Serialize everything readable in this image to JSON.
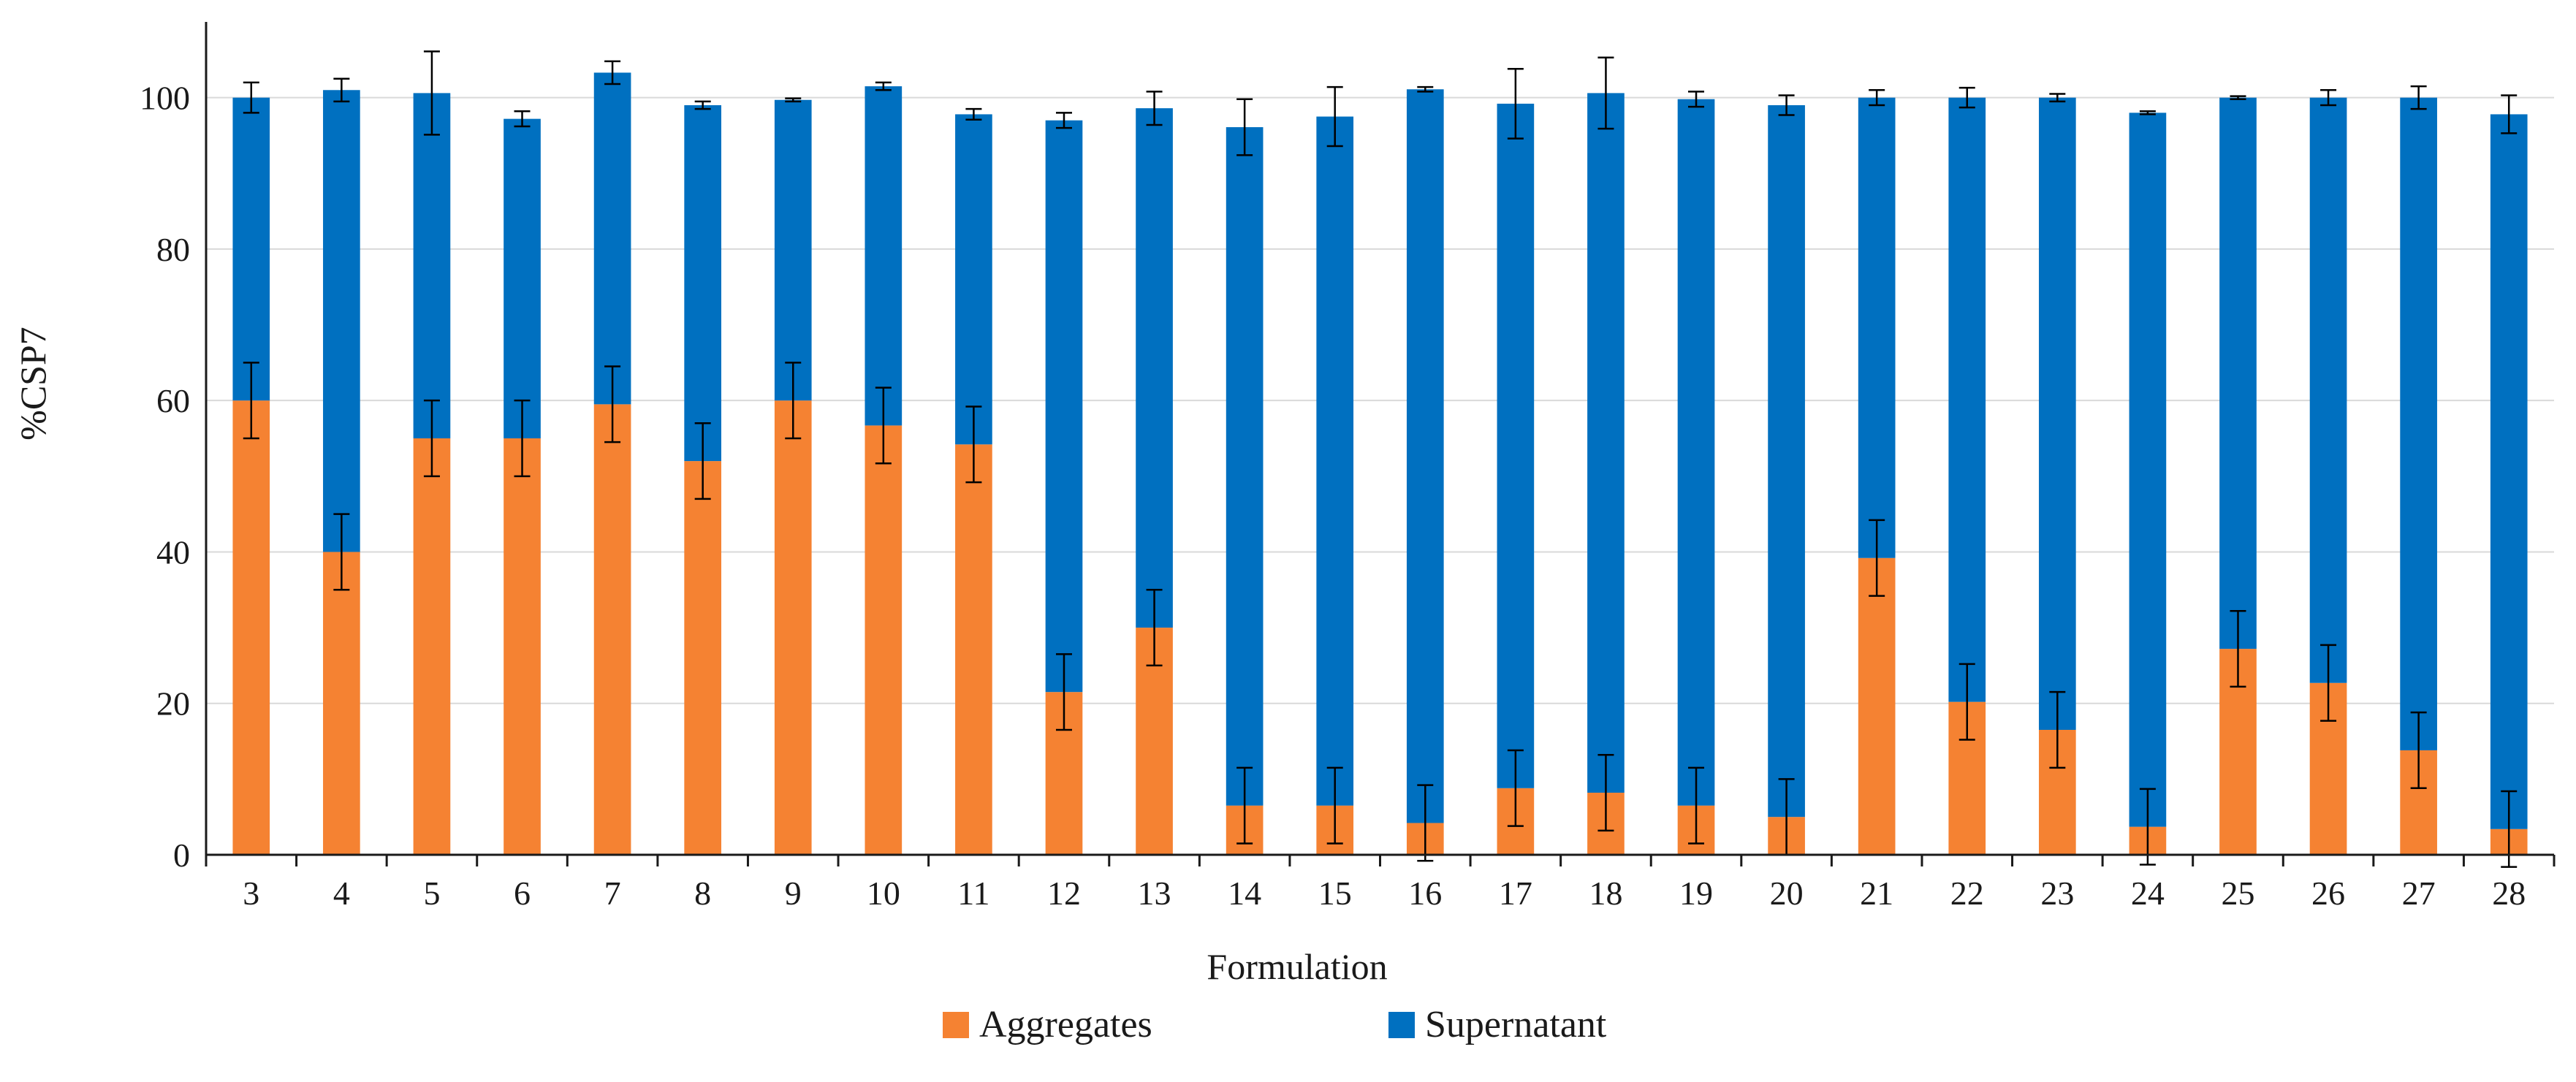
{
  "chart_data": {
    "type": "bar",
    "stacked": true,
    "title": "",
    "xlabel": "Formulation",
    "ylabel": "%CSP7",
    "ylim": [
      0,
      110
    ],
    "yticks": [
      0,
      20,
      40,
      60,
      80,
      100
    ],
    "ytick_labels": [
      "0",
      "20",
      "40",
      "60",
      "80",
      "100"
    ],
    "grid": true,
    "legend_position": "bottom",
    "categories": [
      "3",
      "4",
      "5",
      "6",
      "7",
      "8",
      "9",
      "10",
      "11",
      "12",
      "13",
      "14",
      "15",
      "16",
      "17",
      "18",
      "19",
      "20",
      "21",
      "22",
      "23",
      "24",
      "25",
      "26",
      "27",
      "28"
    ],
    "series": [
      {
        "name": "Aggregates",
        "color": "#F58232",
        "values": [
          60,
          40,
          55,
          55,
          59.5,
          52,
          60,
          56.7,
          54.2,
          21.5,
          30,
          6.5,
          6.5,
          4.2,
          8.8,
          8.2,
          6.5,
          5,
          39.2,
          20.2,
          16.5,
          3.7,
          27.2,
          22.7,
          13.8,
          3.4
        ],
        "errors": [
          5,
          5,
          5,
          5,
          5,
          5,
          5,
          5,
          5,
          5,
          5,
          5,
          5,
          5,
          5,
          5,
          5,
          5,
          5,
          5,
          5,
          5,
          5,
          5,
          5,
          5
        ]
      },
      {
        "name": "Supernatant",
        "color": "#0070C0",
        "values": [
          40,
          61,
          45.6,
          42.2,
          43.8,
          47,
          39.7,
          44.8,
          43.6,
          75.5,
          68.6,
          89.6,
          91,
          96.9,
          90.4,
          92.4,
          93.3,
          94,
          60.8,
          79.8,
          83.5,
          94.3,
          72.8,
          77.3,
          86.2,
          94.4
        ],
        "errors": [
          2,
          1.5,
          5.5,
          1,
          1.5,
          0.5,
          0.2,
          0.5,
          0.7,
          1,
          2.2,
          3.7,
          3.9,
          0.3,
          4.6,
          4.7,
          1,
          1.3,
          1,
          1.3,
          0.5,
          0.2,
          0.2,
          1,
          1.5,
          2.5
        ]
      }
    ]
  }
}
